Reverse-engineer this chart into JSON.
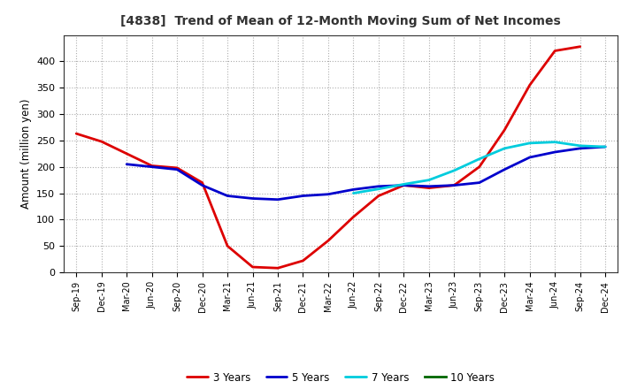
{
  "title": "[4838]  Trend of Mean of 12-Month Moving Sum of Net Incomes",
  "ylabel": "Amount (million yen)",
  "background_color": "#FFFFFF",
  "grid_color": "#999999",
  "ylim": [
    0,
    450
  ],
  "yticks": [
    0,
    50,
    100,
    150,
    200,
    250,
    300,
    350,
    400
  ],
  "x_labels": [
    "Sep-19",
    "Dec-19",
    "Mar-20",
    "Jun-20",
    "Sep-20",
    "Dec-20",
    "Mar-21",
    "Jun-21",
    "Sep-21",
    "Dec-21",
    "Mar-22",
    "Jun-22",
    "Sep-22",
    "Dec-22",
    "Mar-23",
    "Jun-23",
    "Sep-23",
    "Dec-23",
    "Mar-24",
    "Jun-24",
    "Sep-24",
    "Dec-24"
  ],
  "series_order": [
    "3 Years",
    "5 Years",
    "7 Years",
    "10 Years"
  ],
  "series": {
    "3 Years": {
      "color": "#DD0000",
      "linewidth": 2.0,
      "data_x": [
        "Sep-19",
        "Dec-19",
        "Mar-20",
        "Jun-20",
        "Sep-20",
        "Dec-20",
        "Mar-21",
        "Jun-21",
        "Sep-21",
        "Dec-21",
        "Mar-22",
        "Jun-22",
        "Sep-22",
        "Dec-22",
        "Mar-23",
        "Jun-23",
        "Sep-23",
        "Dec-23",
        "Mar-24",
        "Jun-24",
        "Sep-24"
      ],
      "data_y": [
        263,
        248,
        225,
        202,
        198,
        170,
        50,
        10,
        8,
        22,
        60,
        105,
        145,
        165,
        160,
        165,
        200,
        270,
        355,
        420,
        428
      ]
    },
    "5 Years": {
      "color": "#0000CC",
      "linewidth": 2.0,
      "data_x": [
        "Mar-20",
        "Jun-20",
        "Sep-20",
        "Dec-20",
        "Mar-21",
        "Jun-21",
        "Sep-21",
        "Dec-21",
        "Mar-22",
        "Jun-22",
        "Sep-22",
        "Dec-22",
        "Mar-23",
        "Jun-23",
        "Sep-23",
        "Dec-23",
        "Mar-24",
        "Jun-24",
        "Sep-24",
        "Dec-24"
      ],
      "data_y": [
        205,
        200,
        195,
        165,
        145,
        140,
        138,
        145,
        148,
        157,
        163,
        165,
        163,
        165,
        170,
        195,
        218,
        228,
        235,
        238
      ]
    },
    "7 Years": {
      "color": "#00CCDD",
      "linewidth": 2.0,
      "data_x": [
        "Jun-22",
        "Sep-22",
        "Dec-22",
        "Mar-23",
        "Jun-23",
        "Sep-23",
        "Dec-23",
        "Mar-24",
        "Jun-24",
        "Sep-24",
        "Dec-24"
      ],
      "data_y": [
        150,
        158,
        167,
        175,
        193,
        215,
        235,
        245,
        247,
        240,
        238
      ]
    },
    "10 Years": {
      "color": "#006600",
      "linewidth": 2.0,
      "data_x": [],
      "data_y": []
    }
  }
}
